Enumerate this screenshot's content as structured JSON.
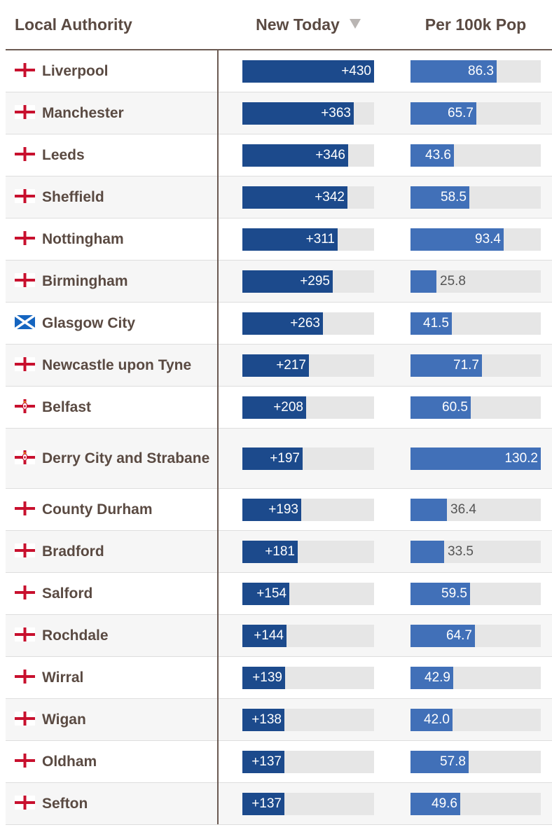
{
  "header": {
    "col_name": "Local Authority",
    "col_new": "New Today",
    "col_per": "Per 100k Pop"
  },
  "colors": {
    "new_bar": "#1c4a8c",
    "per_bar": "#4170b8",
    "track": "#e6e6e6"
  },
  "chart_data": {
    "type": "table",
    "columns": [
      "Local Authority",
      "New Today",
      "Per 100k Pop"
    ],
    "sort": {
      "column": "New Today",
      "direction": "descending"
    },
    "new_max": 430,
    "per_max": 130.2,
    "rows": [
      {
        "name": "Liverpool",
        "flag": "england-flag",
        "new": 430,
        "new_label": "+430",
        "per": 86.3,
        "per_label": "86.3"
      },
      {
        "name": "Manchester",
        "flag": "england-flag",
        "new": 363,
        "new_label": "+363",
        "per": 65.7,
        "per_label": "65.7"
      },
      {
        "name": "Leeds",
        "flag": "england-flag",
        "new": 346,
        "new_label": "+346",
        "per": 43.6,
        "per_label": "43.6"
      },
      {
        "name": "Sheffield",
        "flag": "england-flag",
        "new": 342,
        "new_label": "+342",
        "per": 58.5,
        "per_label": "58.5"
      },
      {
        "name": "Nottingham",
        "flag": "england-flag",
        "new": 311,
        "new_label": "+311",
        "per": 93.4,
        "per_label": "93.4"
      },
      {
        "name": "Birmingham",
        "flag": "england-flag",
        "new": 295,
        "new_label": "+295",
        "per": 25.8,
        "per_label": "25.8"
      },
      {
        "name": "Glasgow City",
        "flag": "scotland-flag",
        "new": 263,
        "new_label": "+263",
        "per": 41.5,
        "per_label": "41.5"
      },
      {
        "name": "Newcastle upon Tyne",
        "flag": "england-flag",
        "new": 217,
        "new_label": "+217",
        "per": 71.7,
        "per_label": "71.7"
      },
      {
        "name": "Belfast",
        "flag": "northern-ireland-flag",
        "new": 208,
        "new_label": "+208",
        "per": 60.5,
        "per_label": "60.5"
      },
      {
        "name": "Derry City and Strabane",
        "flag": "northern-ireland-flag",
        "new": 197,
        "new_label": "+197",
        "per": 130.2,
        "per_label": "130.2"
      },
      {
        "name": "County Durham",
        "flag": "england-flag",
        "new": 193,
        "new_label": "+193",
        "per": 36.4,
        "per_label": "36.4"
      },
      {
        "name": "Bradford",
        "flag": "england-flag",
        "new": 181,
        "new_label": "+181",
        "per": 33.5,
        "per_label": "33.5"
      },
      {
        "name": "Salford",
        "flag": "england-flag",
        "new": 154,
        "new_label": "+154",
        "per": 59.5,
        "per_label": "59.5"
      },
      {
        "name": "Rochdale",
        "flag": "england-flag",
        "new": 144,
        "new_label": "+144",
        "per": 64.7,
        "per_label": "64.7"
      },
      {
        "name": "Wirral",
        "flag": "england-flag",
        "new": 139,
        "new_label": "+139",
        "per": 42.9,
        "per_label": "42.9"
      },
      {
        "name": "Wigan",
        "flag": "england-flag",
        "new": 138,
        "new_label": "+138",
        "per": 42.0,
        "per_label": "42.0"
      },
      {
        "name": "Oldham",
        "flag": "england-flag",
        "new": 137,
        "new_label": "+137",
        "per": 57.8,
        "per_label": "57.8"
      },
      {
        "name": "Sefton",
        "flag": "england-flag",
        "new": 137,
        "new_label": "+137",
        "per": 49.6,
        "per_label": "49.6"
      }
    ]
  }
}
